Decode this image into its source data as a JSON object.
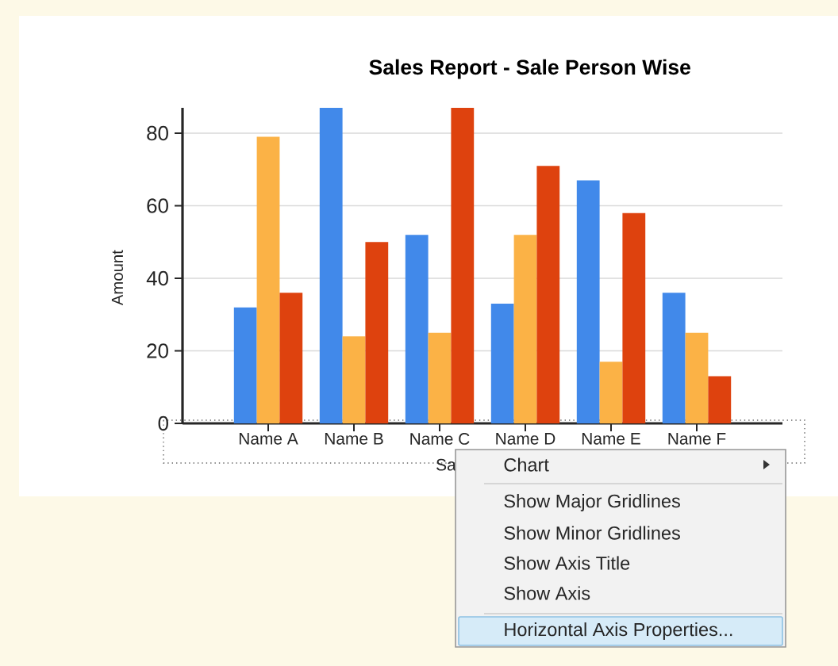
{
  "chart_data": {
    "type": "bar",
    "title": "Sales Report - Sale Person Wise",
    "xlabel": "Sa",
    "ylabel": "Amount",
    "categories": [
      "Name A",
      "Name B",
      "Name C",
      "Name D",
      "Name E",
      "Name F"
    ],
    "series": [
      {
        "color": "#4189ea",
        "values": [
          32,
          87,
          52,
          33,
          67,
          36
        ]
      },
      {
        "color": "#fbb246",
        "values": [
          79,
          24,
          25,
          52,
          17,
          25
        ]
      },
      {
        "color": "#de420e",
        "values": [
          36,
          50,
          87,
          71,
          58,
          13
        ]
      }
    ],
    "ylim": [
      0,
      87
    ],
    "yticks": [
      0,
      20,
      40,
      60,
      80
    ],
    "grid": "y",
    "annotations": [
      "Chart",
      "Show Major Gridlines",
      "Show Minor Gridlines",
      "Show Axis Title",
      "Show Axis",
      "Horizontal Axis Properties..."
    ]
  }
}
